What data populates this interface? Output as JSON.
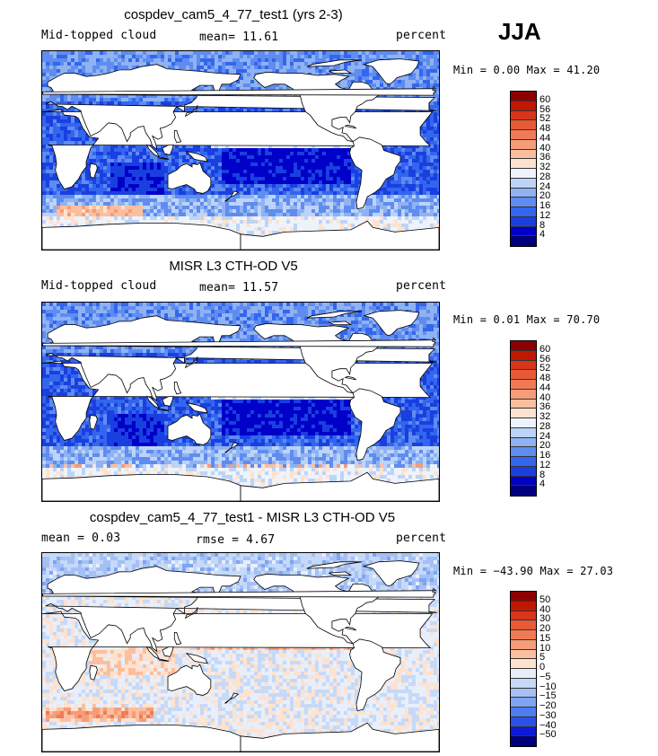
{
  "season": "JJA",
  "palette_blue_red": [
    "#00007f",
    "#0000d0",
    "#1a3fe0",
    "#3366ee",
    "#5a88f0",
    "#7aa4f2",
    "#9bbef5",
    "#bcd4f8",
    "#e6eefb",
    "#fde2d0",
    "#fcc6a5",
    "#f7a37d",
    "#f07a55",
    "#e65030",
    "#d42a12",
    "#b41000",
    "#8c0000"
  ],
  "panels": [
    {
      "title": "cospdev_cam5_4_77_test1 (yrs 2-3)",
      "left_label": "Mid-topped cloud",
      "center_label": "mean=  11.61",
      "right_label": "percent",
      "minmax": "Min =    0.00 Max =  41.20",
      "scheme": "absolute_model"
    },
    {
      "title": "MISR L3 CTH-OD V5",
      "left_label": "Mid-topped cloud",
      "center_label": "mean=  11.57",
      "right_label": "percent",
      "minmax": "Min =    0.01 Max =  70.70",
      "scheme": "absolute_obs"
    },
    {
      "title": "cospdev_cam5_4_77_test1 - MISR L3 CTH-OD V5",
      "left_label": "mean =   0.03",
      "center_label": "rmse =   4.67",
      "right_label": "percent",
      "minmax": "Min = −43.90 Max =  27.03",
      "scheme": "difference"
    }
  ],
  "chart_data": [
    {
      "type": "heatmap",
      "title": "cospdev_cam5_4_77_test1 (yrs 2-3)",
      "variable": "Mid-topped cloud",
      "units": "percent",
      "mean": 11.61,
      "min": 0.0,
      "max": 41.2,
      "colorbar_levels": [
        4,
        8,
        12,
        16,
        20,
        24,
        28,
        32,
        36,
        40,
        44,
        48,
        52,
        56,
        60
      ],
      "colorbar_labels": [
        "60",
        "56",
        "52",
        "48",
        "44",
        "40",
        "36",
        "32",
        "28",
        "24",
        "20",
        "16",
        "12",
        "8",
        "4"
      ]
    },
    {
      "type": "heatmap",
      "title": "MISR L3 CTH-OD V5",
      "variable": "Mid-topped cloud",
      "units": "percent",
      "mean": 11.57,
      "min": 0.01,
      "max": 70.7,
      "colorbar_levels": [
        4,
        8,
        12,
        16,
        20,
        24,
        28,
        32,
        36,
        40,
        44,
        48,
        52,
        56,
        60
      ],
      "colorbar_labels": [
        "60",
        "56",
        "52",
        "48",
        "44",
        "40",
        "36",
        "32",
        "28",
        "24",
        "20",
        "16",
        "12",
        "8",
        "4"
      ]
    },
    {
      "type": "heatmap",
      "title": "cospdev_cam5_4_77_test1 - MISR L3 CTH-OD V5",
      "units": "percent",
      "mean": 0.03,
      "rmse": 4.67,
      "min": -43.9,
      "max": 27.03,
      "colorbar_levels": [
        -50,
        -40,
        -30,
        -20,
        -15,
        -10,
        -5,
        0,
        5,
        10,
        15,
        20,
        30,
        40,
        50
      ],
      "colorbar_labels": [
        "50",
        "40",
        "30",
        "20",
        "15",
        "10",
        "5",
        "0",
        "−5",
        "−10",
        "−15",
        "−20",
        "−30",
        "−40",
        "−50"
      ]
    }
  ]
}
